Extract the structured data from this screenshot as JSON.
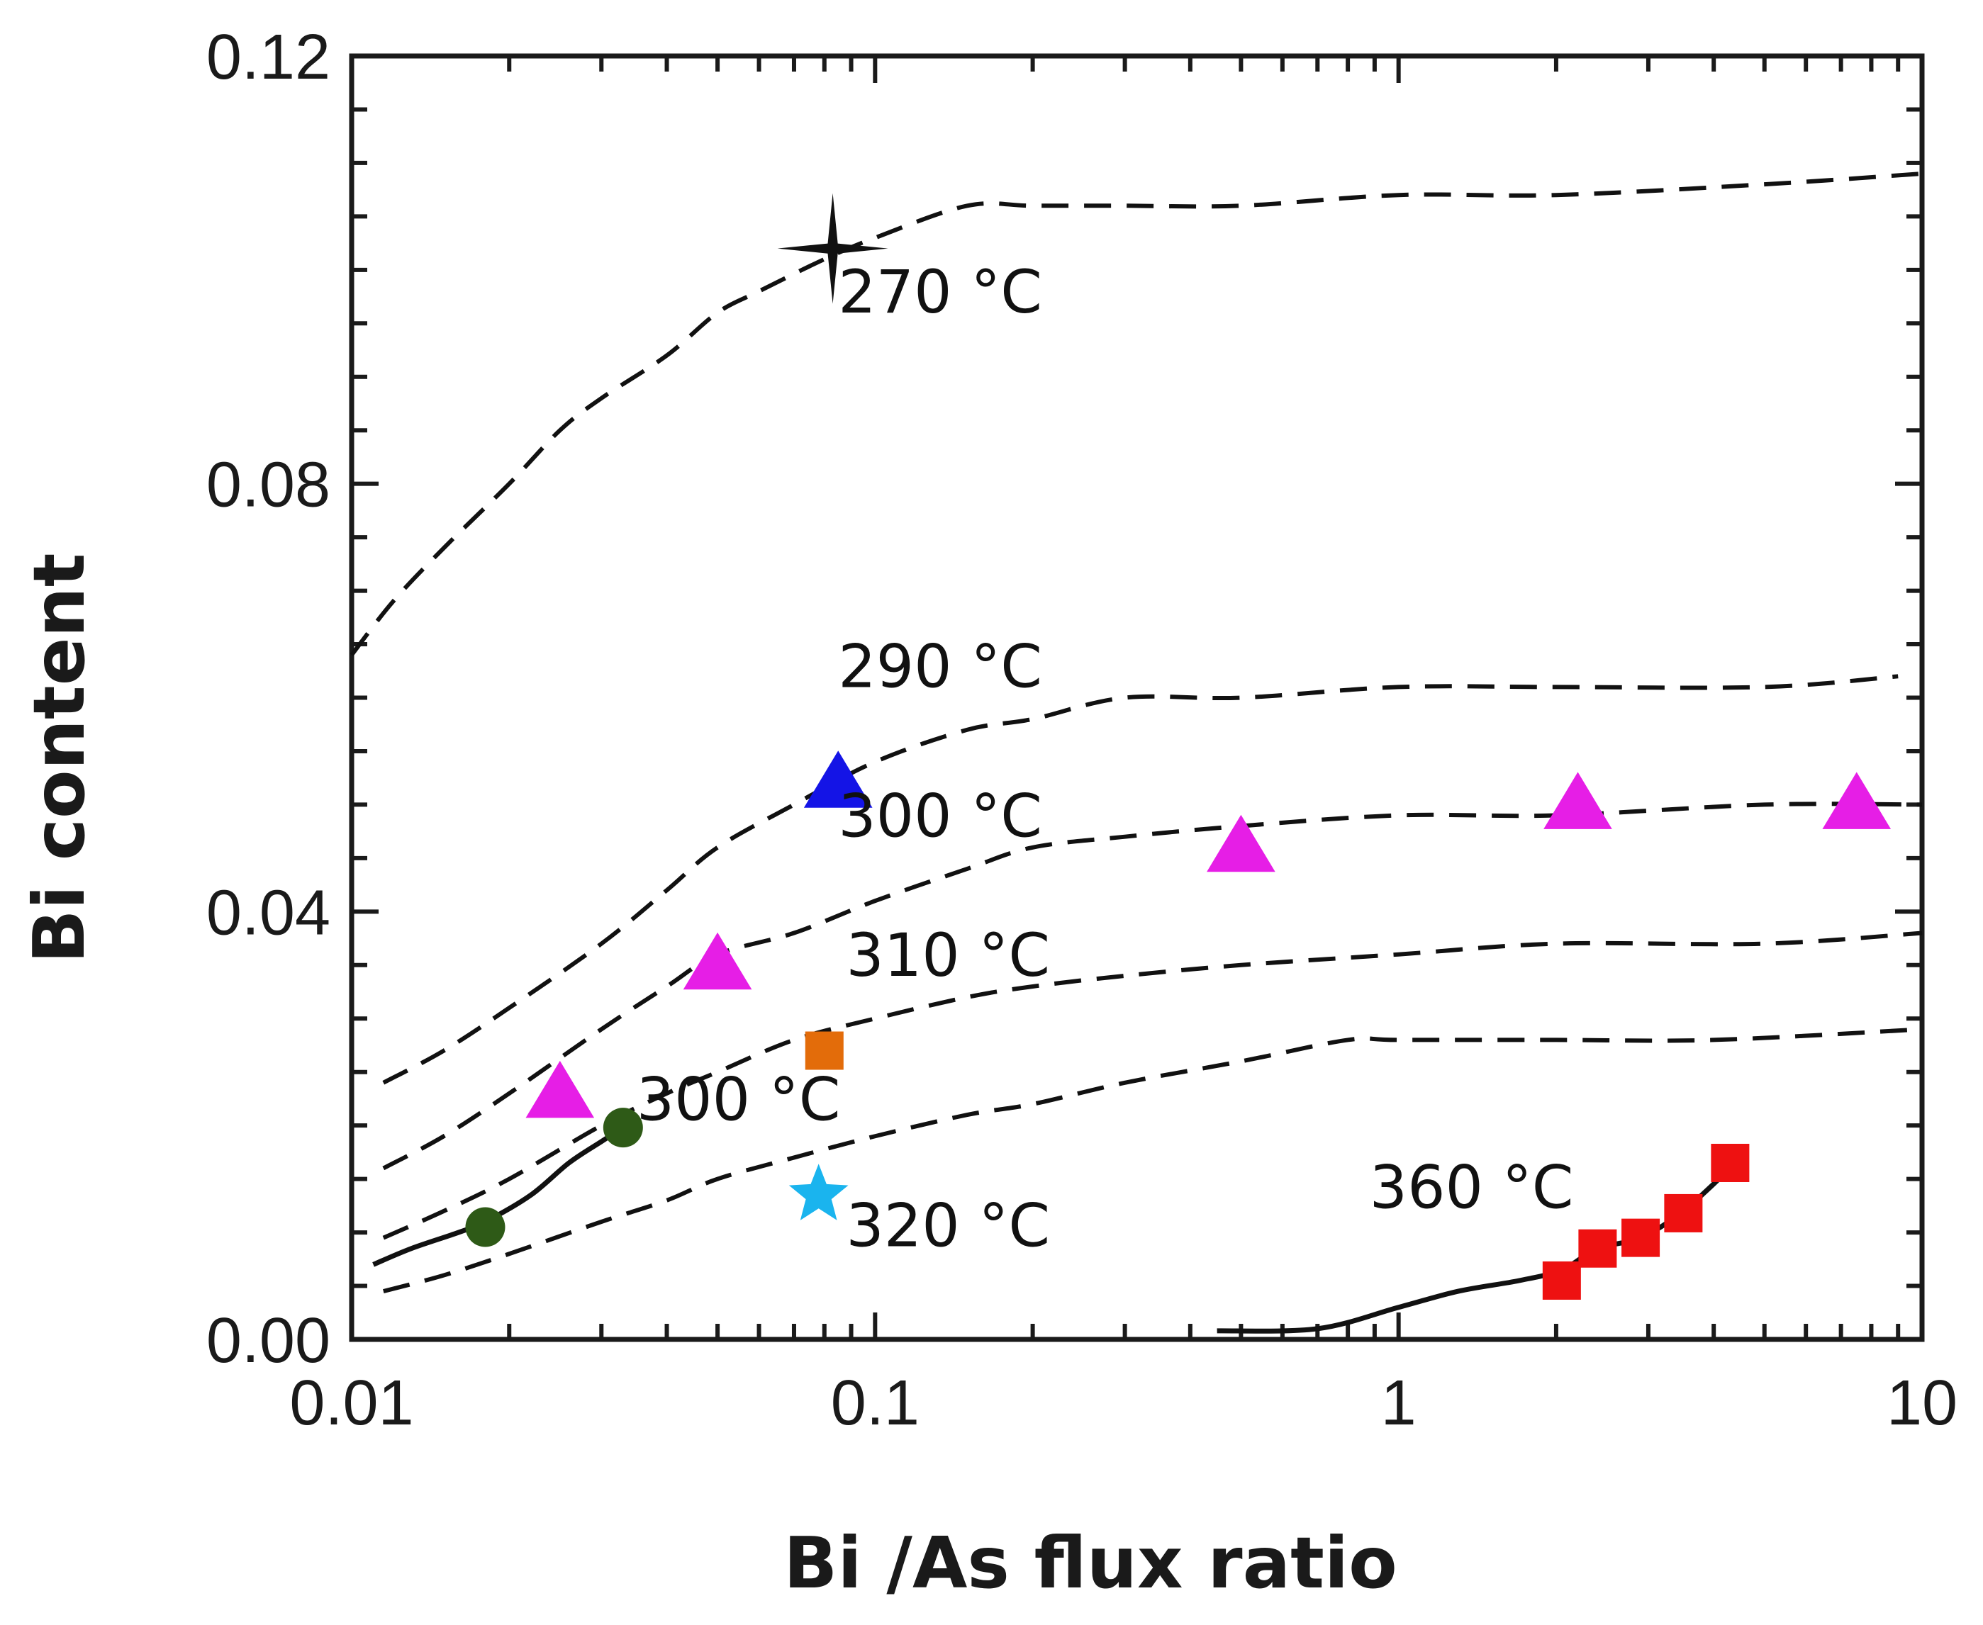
{
  "chart_data": {
    "type": "scatter",
    "xlabel": "Bi /As flux ratio",
    "ylabel": "Bi content",
    "xscale": "log",
    "xlim": [
      0.01,
      10
    ],
    "ylim": [
      0,
      0.12
    ],
    "x_ticks": [
      {
        "value": 0.01,
        "label": "0.01"
      },
      {
        "value": 0.1,
        "label": "0.1"
      },
      {
        "value": 1,
        "label": "1"
      },
      {
        "value": 10,
        "label": "10"
      }
    ],
    "y_ticks": [
      {
        "value": 0.0,
        "label": "0.00"
      },
      {
        "value": 0.04,
        "label": "0.04"
      },
      {
        "value": 0.08,
        "label": "0.08"
      },
      {
        "value": 0.12,
        "label": "0.12"
      }
    ],
    "grid": false,
    "curves": [
      {
        "style": "dashed",
        "x": [
          0.01,
          0.012,
          0.015,
          0.02,
          0.025,
          0.03,
          0.04,
          0.05,
          0.06,
          0.08,
          0.1,
          0.15,
          0.2,
          0.3,
          0.5,
          1,
          2,
          5,
          10
        ],
        "y": [
          0.064,
          0.069,
          0.074,
          0.08,
          0.085,
          0.088,
          0.092,
          0.096,
          0.098,
          0.101,
          0.103,
          0.106,
          0.106,
          0.106,
          0.106,
          0.107,
          0.107,
          0.108,
          0.109
        ]
      },
      {
        "style": "dashed",
        "x": [
          0.0115,
          0.015,
          0.02,
          0.03,
          0.04,
          0.05,
          0.07,
          0.1,
          0.15,
          0.2,
          0.3,
          0.5,
          1,
          2,
          5,
          9
        ],
        "y": [
          0.024,
          0.027,
          0.031,
          0.037,
          0.042,
          0.046,
          0.05,
          0.054,
          0.057,
          0.058,
          0.06,
          0.06,
          0.061,
          0.061,
          0.061,
          0.062
        ]
      },
      {
        "style": "dashed",
        "x": [
          0.0115,
          0.015,
          0.02,
          0.03,
          0.04,
          0.05,
          0.07,
          0.1,
          0.15,
          0.2,
          0.3,
          0.5,
          1,
          2,
          5,
          10
        ],
        "y": [
          0.016,
          0.019,
          0.023,
          0.029,
          0.033,
          0.036,
          0.038,
          0.041,
          0.044,
          0.046,
          0.047,
          0.048,
          0.049,
          0.049,
          0.05,
          0.05
        ]
      },
      {
        "style": "dashed",
        "x": [
          0.0115,
          0.015,
          0.02,
          0.03,
          0.04,
          0.05,
          0.07,
          0.1,
          0.15,
          0.2,
          0.3,
          0.5,
          1,
          2,
          5,
          10
        ],
        "y": [
          0.0095,
          0.012,
          0.015,
          0.02,
          0.023,
          0.025,
          0.028,
          0.03,
          0.032,
          0.033,
          0.034,
          0.035,
          0.036,
          0.037,
          0.037,
          0.038
        ]
      },
      {
        "style": "dashed",
        "x": [
          0.0115,
          0.015,
          0.02,
          0.03,
          0.04,
          0.05,
          0.07,
          0.1,
          0.15,
          0.2,
          0.3,
          0.5,
          0.8,
          1,
          2,
          4,
          10
        ],
        "y": [
          0.0045,
          0.006,
          0.008,
          0.011,
          0.013,
          0.015,
          0.017,
          0.019,
          0.021,
          0.022,
          0.024,
          0.026,
          0.028,
          0.028,
          0.028,
          0.028,
          0.029
        ]
      },
      {
        "style": "solid",
        "x": [
          0.011,
          0.013,
          0.016,
          0.018,
          0.022,
          0.026,
          0.03,
          0.033
        ],
        "y": [
          0.007,
          0.0085,
          0.01,
          0.011,
          0.0135,
          0.0165,
          0.0185,
          0.0198
        ]
      },
      {
        "style": "solid",
        "x": [
          0.45,
          0.7,
          1,
          1.3,
          1.7,
          2.05,
          2.4,
          2.9,
          3.5,
          4.3
        ],
        "y": [
          0.0008,
          0.001,
          0.003,
          0.0045,
          0.0055,
          0.0065,
          0.0085,
          0.0095,
          0.012,
          0.016
        ]
      }
    ],
    "markers": [
      {
        "shape": "cross-star",
        "color": "#111111",
        "points": [
          [
            0.083,
            0.102
          ]
        ]
      },
      {
        "shape": "triangle",
        "color": "#1414e6",
        "points": [
          [
            0.085,
            0.052
          ]
        ]
      },
      {
        "shape": "triangle",
        "color": "#e61ee6",
        "points": [
          [
            0.025,
            0.023
          ],
          [
            0.05,
            0.035
          ],
          [
            0.5,
            0.046
          ],
          [
            2.2,
            0.05
          ],
          [
            7.5,
            0.05
          ]
        ]
      },
      {
        "shape": "square",
        "color": "#e36c0a",
        "points": [
          [
            0.08,
            0.027
          ]
        ]
      },
      {
        "shape": "circle",
        "color": "#2e5a17",
        "points": [
          [
            0.018,
            0.0105
          ],
          [
            0.033,
            0.0198
          ]
        ]
      },
      {
        "shape": "star",
        "color": "#1ab4ee",
        "points": [
          [
            0.078,
            0.0135
          ]
        ]
      },
      {
        "shape": "square",
        "color": "#ee1111",
        "points": [
          [
            2.05,
            0.0055
          ],
          [
            2.4,
            0.0085
          ],
          [
            2.9,
            0.0095
          ],
          [
            3.5,
            0.0118
          ],
          [
            4.3,
            0.0165
          ]
        ]
      }
    ],
    "annotations": [
      {
        "text": "270 °C",
        "x": 0.085,
        "y": 0.096
      },
      {
        "text": "290 °C",
        "x": 0.085,
        "y": 0.061
      },
      {
        "text": "300 °C",
        "x": 0.085,
        "y": 0.047
      },
      {
        "text": "310 °C",
        "x": 0.088,
        "y": 0.034
      },
      {
        "text": "300 °C",
        "x": 0.035,
        "y": 0.0205
      },
      {
        "text": "320 °C",
        "x": 0.088,
        "y": 0.0087
      },
      {
        "text": "360 °C",
        "x": 0.88,
        "y": 0.0123
      }
    ]
  }
}
